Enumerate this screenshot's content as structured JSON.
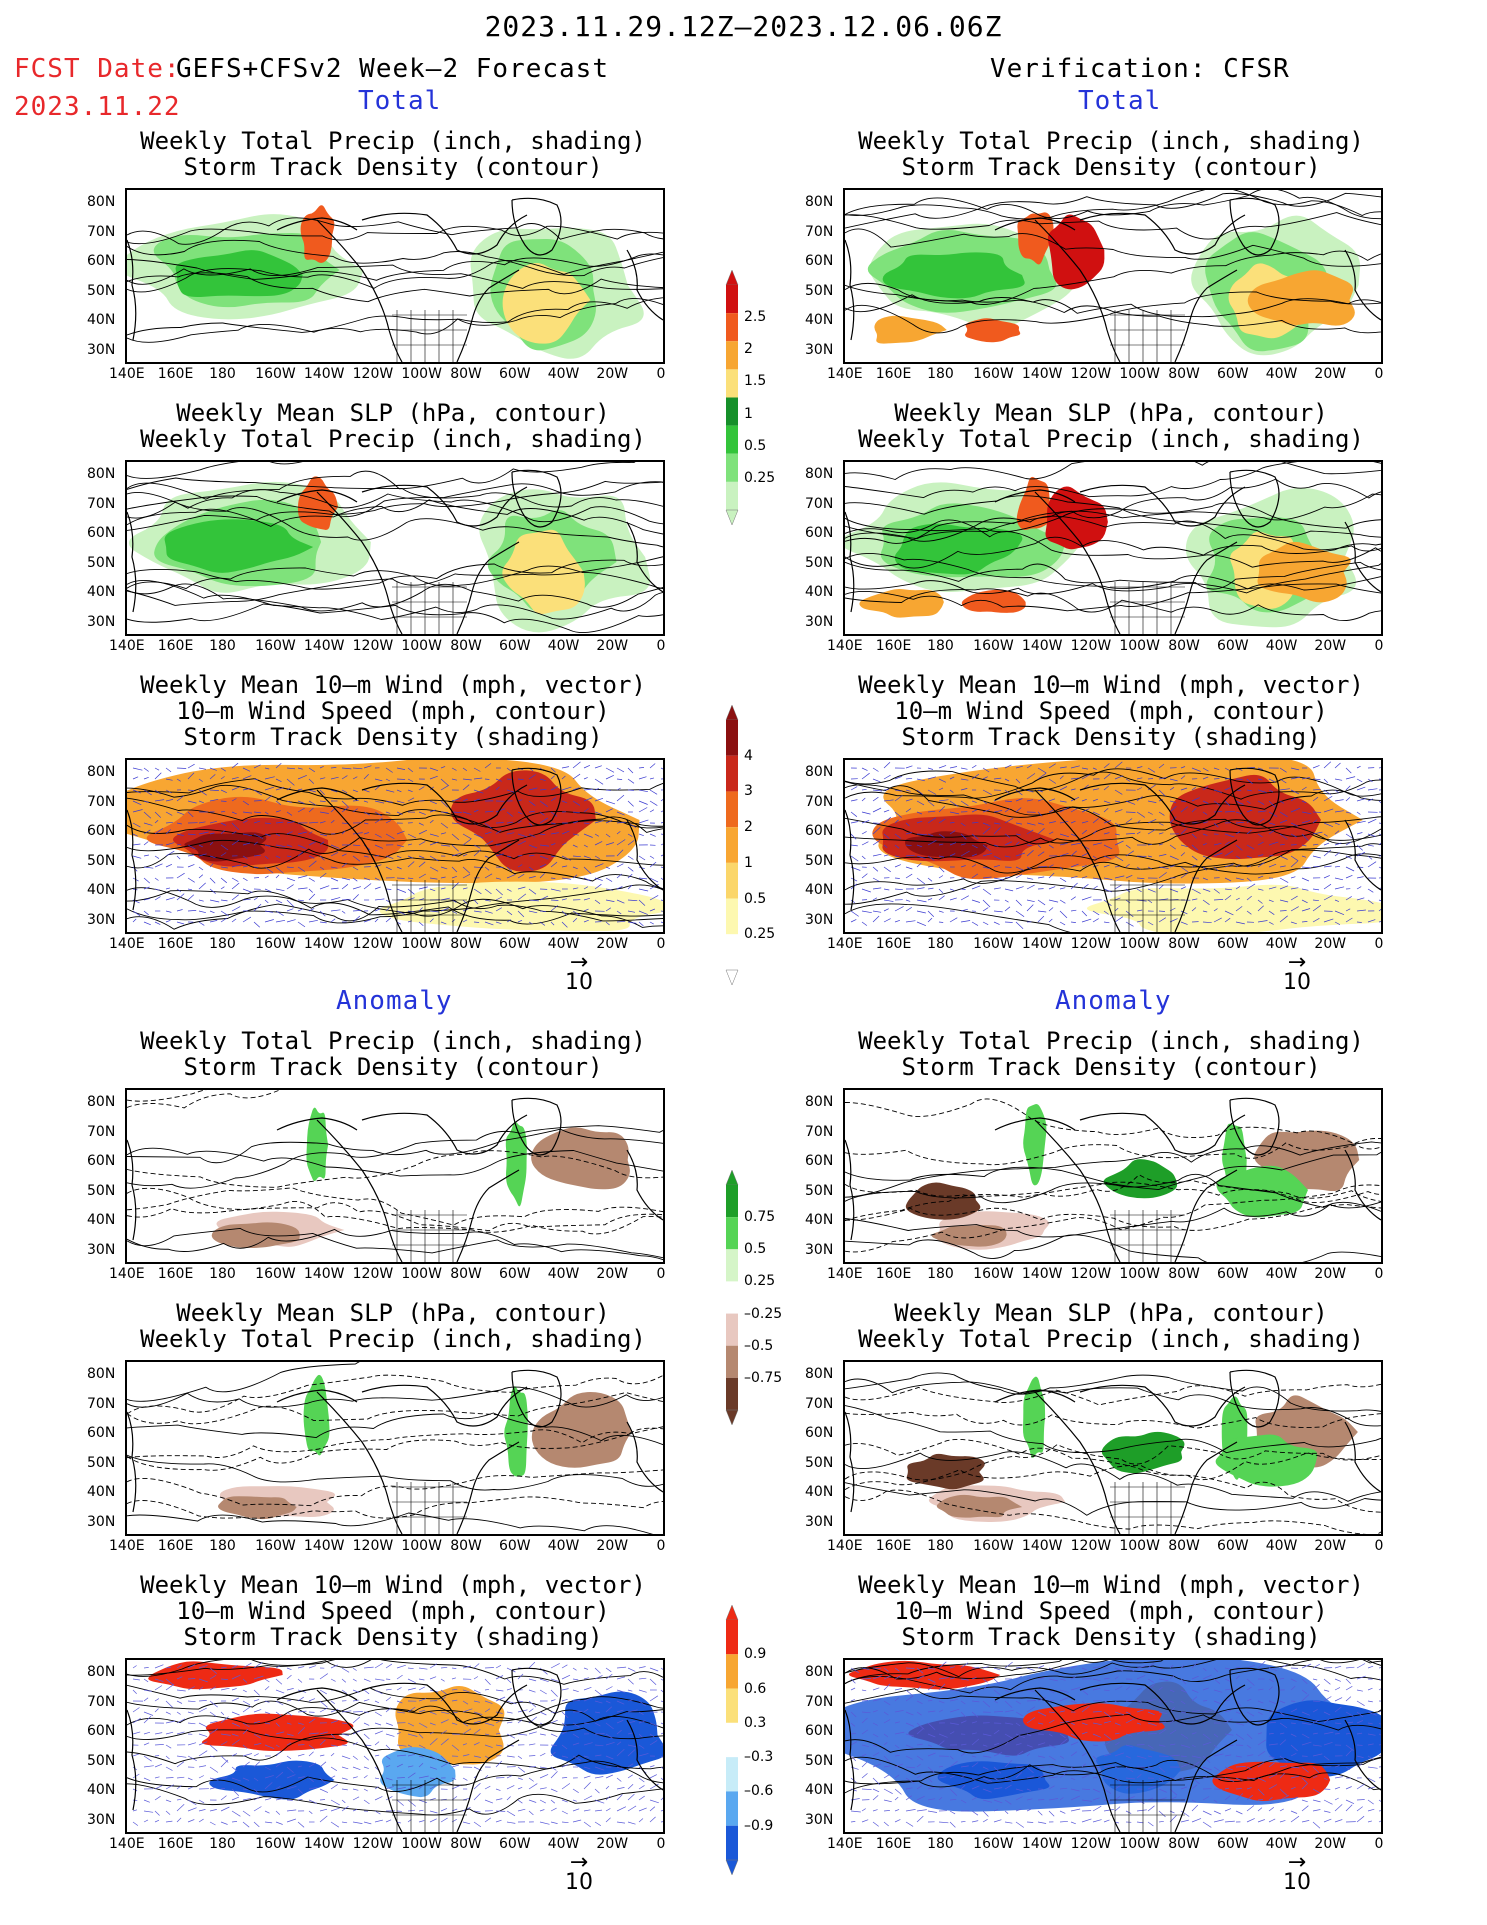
{
  "header": {
    "period": "2023.11.29.12Z–2023.12.06.06Z",
    "fcst_label": "FCST Date:",
    "fcst_model": "GEFS+CFSv2 Week–2 Forecast",
    "fcst_date": "2023.11.22",
    "verification": "Verification: CFSR"
  },
  "sections": {
    "total": "Total",
    "anomaly": "Anomaly"
  },
  "titles": {
    "precip_storm": [
      "Weekly Total Precip (inch, shading)",
      "Storm Track Density (contour)"
    ],
    "slp_precip": [
      "Weekly Mean SLP (hPa, contour)",
      "Weekly Total Precip (inch, shading)"
    ],
    "wind_storm": [
      "Weekly Mean 10–m Wind (mph, vector)",
      "10–m Wind Speed (mph, contour)",
      "Storm Track Density (shading)"
    ]
  },
  "axes": {
    "lat_ticks": [
      "80N",
      "70N",
      "60N",
      "50N",
      "40N",
      "30N"
    ],
    "lon_ticks": [
      "140E",
      "160E",
      "180",
      "160W",
      "140W",
      "120W",
      "100W",
      "80W",
      "60W",
      "40W",
      "20W",
      "0"
    ]
  },
  "colorbars": {
    "precip_total": [
      "2.5",
      "2",
      "1.5",
      "1",
      "0.5",
      "0.25"
    ],
    "storm_total": [
      "4",
      "3",
      "2",
      "1",
      "0.5",
      "0.25"
    ],
    "precip_anom": [
      "0.75",
      "0.5",
      "0.25",
      "–0.25",
      "–0.5",
      "–0.75"
    ],
    "storm_anom": [
      "0.9",
      "0.6",
      "0.3",
      "–0.3",
      "–0.6",
      "–0.9"
    ]
  },
  "vector_ref": "10",
  "colors": {
    "precip_green": [
      "#c9f2c0",
      "#7fe27b",
      "#33c43a",
      "#16902a"
    ],
    "precip_high": [
      "#fbe07a",
      "#f7a632",
      "#f05a1e",
      "#d01010"
    ],
    "storm": [
      "#fdf8b0",
      "#fbd66a",
      "#f8a632",
      "#ee6a1e",
      "#c9281a",
      "#8b1010"
    ],
    "anom_green": [
      "#d5f5c8",
      "#55d455",
      "#1e9e28"
    ],
    "anom_brown": [
      "#e8c8c0",
      "#b58870",
      "#6a3a28"
    ],
    "anom_red": [
      "#fbe07a",
      "#f7a632",
      "#ee2a14"
    ],
    "anom_blue": [
      "#c7ecf8",
      "#5aa8f0",
      "#1a58d8"
    ]
  }
}
